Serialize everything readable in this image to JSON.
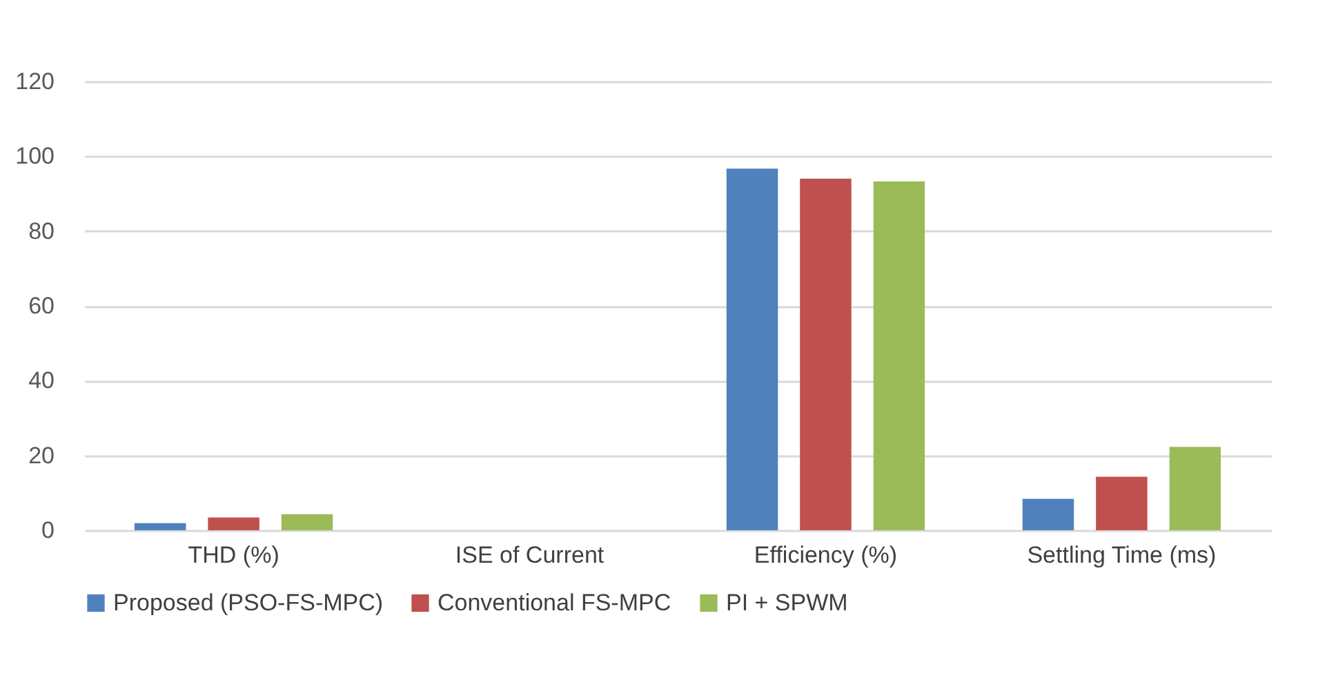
{
  "chart_data": {
    "type": "bar",
    "categories": [
      "THD (%)",
      "ISE of Current",
      "Efficiency (%)",
      "Settling Time (ms)"
    ],
    "series": [
      {
        "name": "Proposed (PSO-FS-MPC)",
        "color": "#4f81bd",
        "values": [
          1.9,
          0,
          96.7,
          8.4
        ]
      },
      {
        "name": "Conventional FS-MPC",
        "color": "#c0504d",
        "values": [
          3.4,
          0,
          94,
          14.3
        ]
      },
      {
        "name": "PI + SPWM",
        "color": "#9bbb59",
        "values": [
          4.3,
          0,
          93.3,
          22.3
        ]
      }
    ],
    "ylim": [
      0,
      120
    ],
    "yticks": [
      0,
      20,
      40,
      60,
      80,
      100,
      120
    ],
    "grid": "y",
    "legend": "bottom"
  }
}
